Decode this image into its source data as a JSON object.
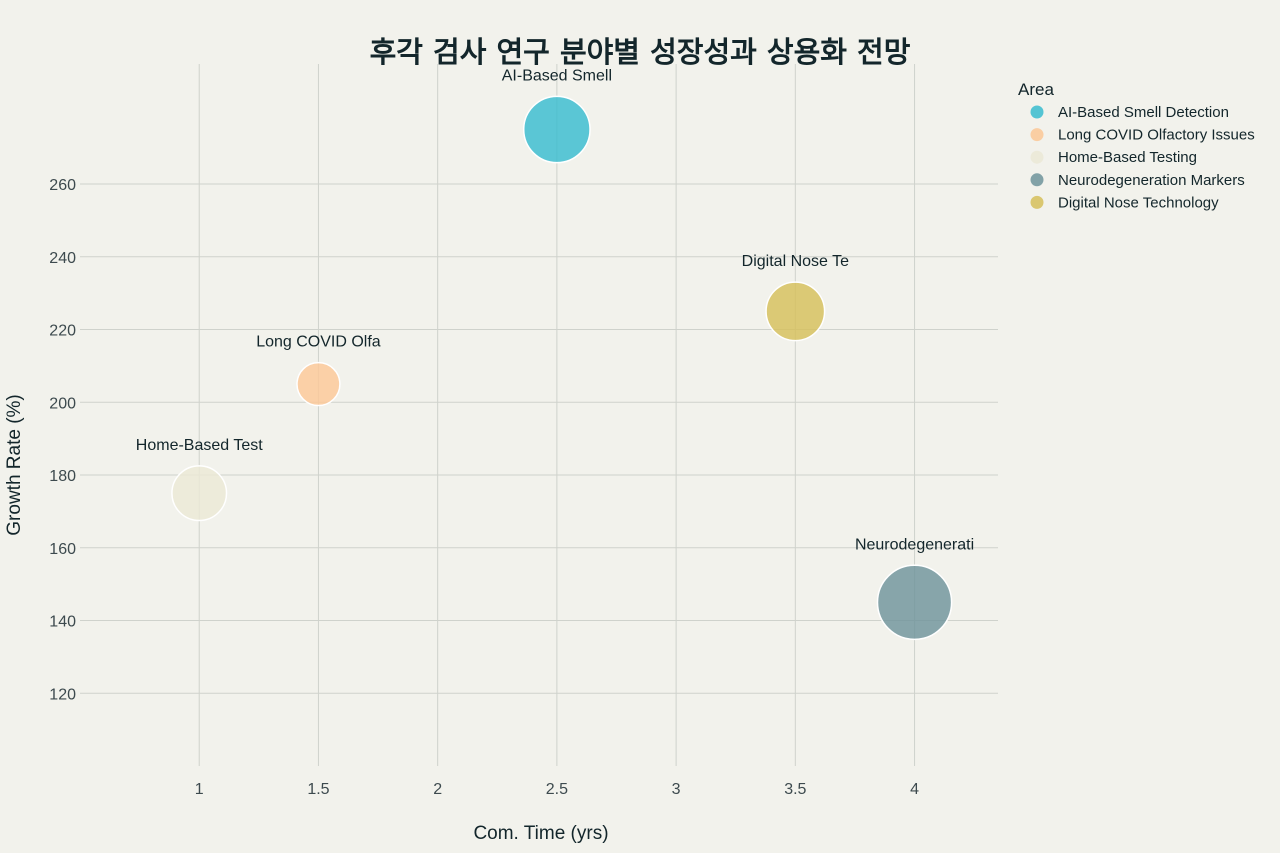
{
  "chart_data": {
    "type": "scatter",
    "title": "후각 검사 연구 분야별 성장성과 상용화 전망",
    "xlabel": "Com. Time (yrs)",
    "ylabel": "Growth Rate (%)",
    "xlim": [
      0.5,
      4.35
    ],
    "ylim": [
      100,
      293
    ],
    "x_ticks": [
      1,
      1.5,
      2,
      2.5,
      3,
      3.5,
      4
    ],
    "x_tick_labels": [
      "1",
      "1.5",
      "2",
      "2.5",
      "3",
      "3.5",
      "4"
    ],
    "y_ticks": [
      120,
      140,
      160,
      180,
      200,
      220,
      240,
      260
    ],
    "y_tick_labels": [
      "120",
      "140",
      "160",
      "180",
      "200",
      "220",
      "240",
      "260"
    ],
    "grid": true,
    "legend": {
      "title": "Area",
      "placement": "top-right"
    },
    "series": [
      {
        "name": "AI-Based Smell Detection",
        "label": "AI-Based Smell",
        "x": 2.5,
        "y": 275,
        "size": 85,
        "color": "#38bccf"
      },
      {
        "name": "Long COVID Olfactory Issues",
        "label": "Long COVID Olfa",
        "x": 1.5,
        "y": 205,
        "size": 55,
        "color": "#fcc897"
      },
      {
        "name": "Home-Based Testing",
        "label": "Home-Based Test",
        "x": 1,
        "y": 175,
        "size": 70,
        "color": "#ebe9d6"
      },
      {
        "name": "Neurodegeneration Markers",
        "label": "Neurodegenerati",
        "x": 4,
        "y": 145,
        "size": 95,
        "color": "#6f949b"
      },
      {
        "name": "Digital Nose Technology",
        "label": "Digital Nose Te",
        "x": 3.5,
        "y": 225,
        "size": 75,
        "color": "#d6bf5a"
      }
    ]
  }
}
